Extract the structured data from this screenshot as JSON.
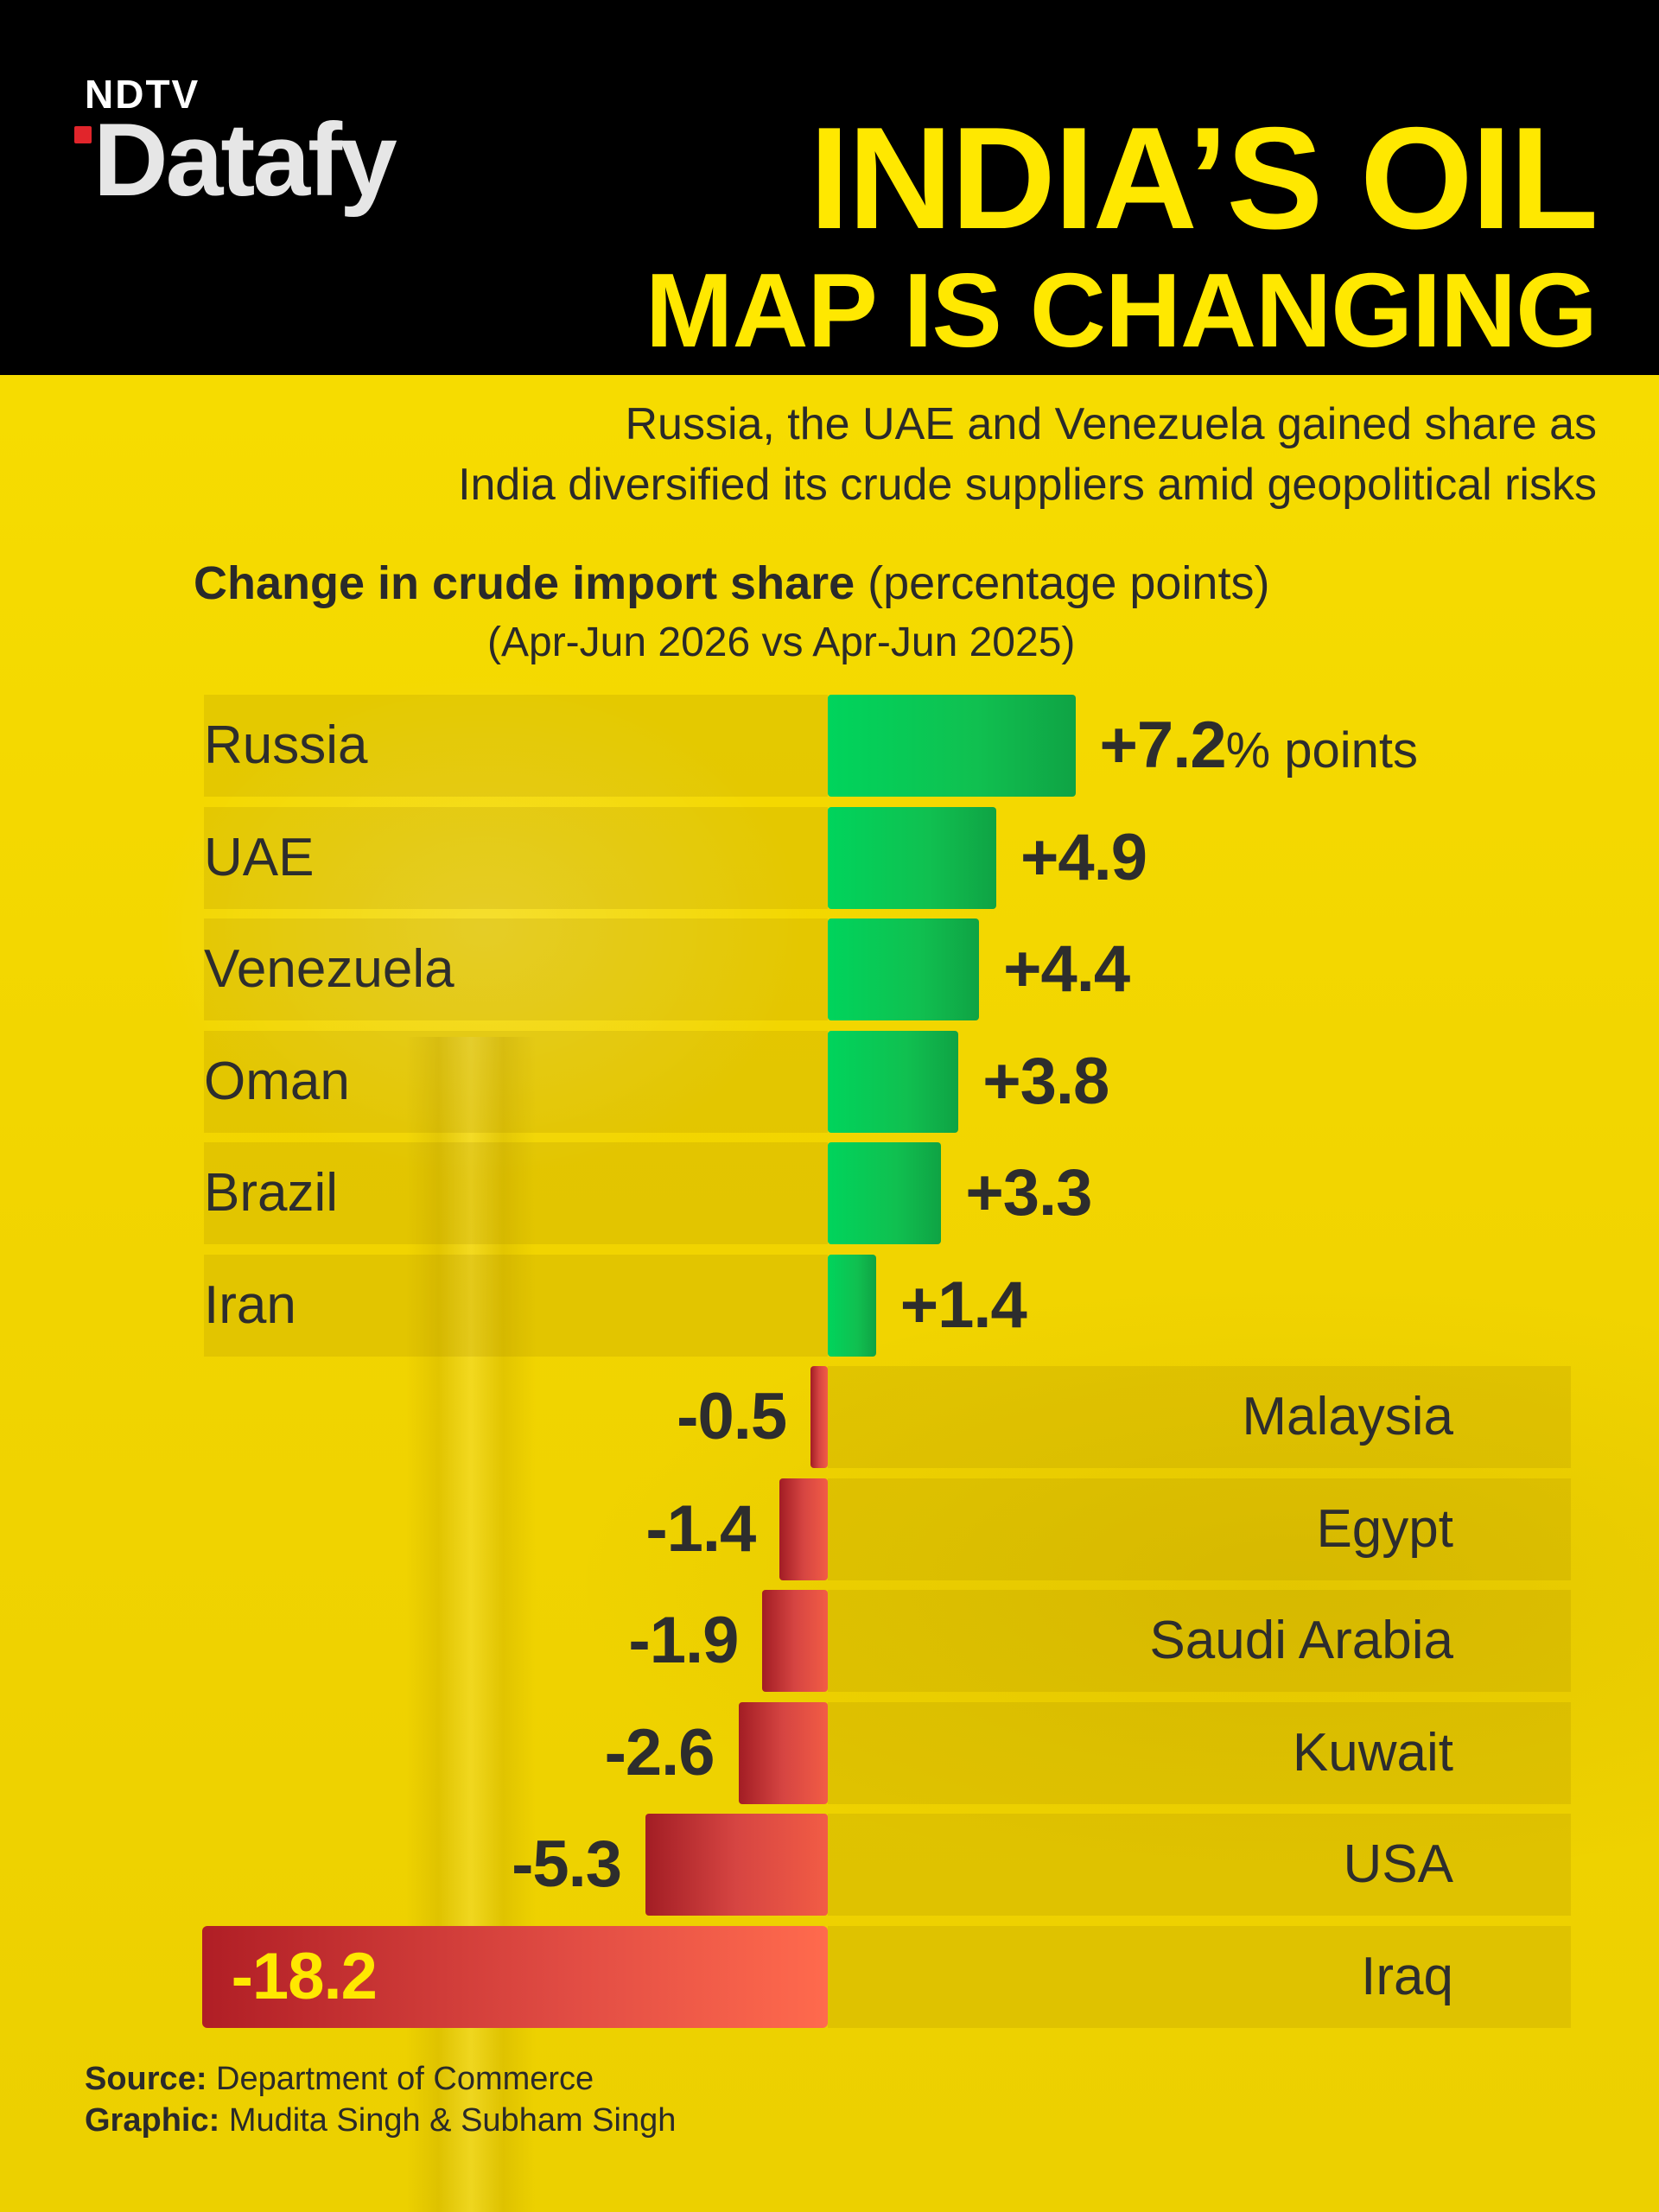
{
  "brand": {
    "top": "NDTV",
    "main": "Datafy"
  },
  "title": {
    "line1": "INDIA’S OIL",
    "line2": "MAP IS CHANGING"
  },
  "subtitle": {
    "line1": "Russia, the UAE and Venezuela gained share as",
    "line2": "India diversified its crude suppliers amid geopolitical risks"
  },
  "chart_data": {
    "type": "bar",
    "orientation": "horizontal",
    "title": "Change in crude import share",
    "title_unit": "(percentage points)",
    "subtitle": "(Apr-Jun 2026 vs Apr-Jun 2025)",
    "categories": [
      "Russia",
      "UAE",
      "Venezuela",
      "Oman",
      "Brazil",
      "Iran",
      "Malaysia",
      "Egypt",
      "Saudi Arabia",
      "Kuwait",
      "USA",
      "Iraq"
    ],
    "values": [
      7.2,
      4.9,
      4.4,
      3.8,
      3.3,
      1.4,
      -0.5,
      -1.4,
      -1.9,
      -2.6,
      -5.3,
      -18.2
    ],
    "value_labels": [
      "+7.2",
      "+4.9",
      "+4.4",
      "+3.8",
      "+3.3",
      "+1.4",
      "-0.5",
      "-1.4",
      "-1.9",
      "-2.6",
      "-5.3",
      "-18.2"
    ],
    "first_label_unit": "% points",
    "colors": {
      "positive": "#10c050",
      "negative": "#d64542",
      "inside_label": "#ffe800"
    }
  },
  "footer": {
    "source_label": "Source:",
    "source_value": "Department of Commerce",
    "graphic_label": "Graphic:",
    "graphic_value": "Mudita Singh & Subham Singh"
  }
}
